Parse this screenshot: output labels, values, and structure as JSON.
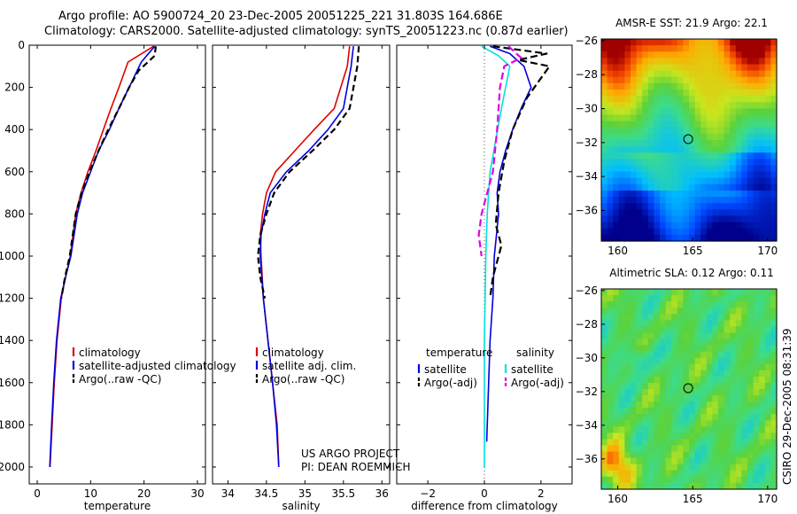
{
  "header": {
    "line1": "Argo profile: AO 5900724_20 23-Dec-2005 20051225_221 31.803S 164.686E",
    "line2": "Climatology: CARS2000. Satellite-adjusted climatology: synTS_20051223.nc (0.87d earlier)"
  },
  "side_label": "CSIRO 29-Dec-2005 08:31:39",
  "project_credit": [
    "US ARGO PROJECT",
    "PI: DEAN ROEMMICH"
  ],
  "colors": {
    "climatology": "#dd0000",
    "satellite": "#0000dd",
    "argo": "#000000",
    "sat_salinity": "#00e0e0",
    "argo_salinity": "#e000e0"
  },
  "chart_data": [
    {
      "type": "line",
      "id": "temperature",
      "xlabel": "temperature",
      "ylabel": "",
      "xlim": [
        -1.5,
        31.5
      ],
      "ylim": [
        0,
        2080
      ],
      "xticks": [
        0,
        10,
        20,
        30
      ],
      "yticks": [
        0,
        200,
        400,
        600,
        800,
        1000,
        1200,
        1400,
        1600,
        1800,
        2000
      ],
      "y_reversed": true,
      "legend": [
        "climatology",
        "satellite-adjusted climatology",
        "Argo(..raw -QC)"
      ],
      "legend_position": "lower-right",
      "series": [
        {
          "name": "climatology",
          "color": "#dd0000",
          "dash": "",
          "x": [
            21.8,
            17,
            15.3,
            13.8,
            12.4,
            11,
            9.5,
            8.2,
            7.2,
            6.2,
            5.3,
            4.5,
            3.7,
            3.2,
            2.8,
            2.4
          ],
          "y": [
            5,
            80,
            200,
            300,
            400,
            500,
            600,
            700,
            800,
            1000,
            1100,
            1200,
            1400,
            1600,
            1800,
            2000
          ]
        },
        {
          "name": "satellite-adjusted climatology",
          "color": "#0000dd",
          "dash": "",
          "x": [
            22,
            19.5,
            17.2,
            15.3,
            13.5,
            11.5,
            10,
            8.5,
            7.5,
            6.3,
            5.3,
            4.4,
            3.6,
            3.1,
            2.7,
            2.35
          ],
          "y": [
            5,
            80,
            200,
            300,
            400,
            500,
            600,
            700,
            800,
            1000,
            1100,
            1200,
            1400,
            1600,
            1800,
            2000
          ]
        },
        {
          "name": "Argo(..raw -QC)",
          "color": "#000000",
          "dash": "7,4",
          "x": [
            22.2,
            22.0,
            19,
            17.2,
            15.3,
            13.3,
            11.5,
            9.8,
            8.3,
            7.2,
            6.1,
            5.2,
            4.5
          ],
          "y": [
            5,
            50,
            120,
            200,
            300,
            400,
            500,
            600,
            700,
            800,
            1000,
            1100,
            1200
          ]
        }
      ]
    },
    {
      "type": "line",
      "id": "salinity",
      "xlabel": "salinity",
      "ylabel": "",
      "xlim": [
        33.8,
        36.1
      ],
      "ylim": [
        0,
        2080
      ],
      "xticks": [
        34,
        34.5,
        35,
        35.5,
        36
      ],
      "yticks": [
        0,
        200,
        400,
        600,
        800,
        1000,
        1200,
        1400,
        1600,
        1800,
        2000
      ],
      "y_reversed": true,
      "legend": [
        "climatology",
        "satellite adj. clim.",
        "Argo(..raw -QC)"
      ],
      "legend_position": "lower-right",
      "series": [
        {
          "name": "climatology",
          "color": "#dd0000",
          "dash": "",
          "x": [
            35.58,
            35.55,
            35.38,
            35.12,
            34.87,
            34.62,
            34.5,
            34.45,
            34.42,
            34.43,
            34.46,
            34.52,
            34.58,
            34.64,
            34.66
          ],
          "y": [
            5,
            100,
            300,
            400,
            500,
            600,
            700,
            800,
            900,
            1000,
            1200,
            1400,
            1600,
            1800,
            2000
          ]
        },
        {
          "name": "satellite adj. clim.",
          "color": "#0000dd",
          "dash": "",
          "x": [
            35.63,
            35.6,
            35.5,
            35.3,
            35.05,
            34.76,
            34.55,
            34.48,
            34.43,
            34.42,
            34.46,
            34.52,
            34.58,
            34.63,
            34.66
          ],
          "y": [
            5,
            100,
            300,
            400,
            500,
            600,
            700,
            800,
            900,
            1000,
            1200,
            1400,
            1600,
            1800,
            2000
          ]
        },
        {
          "name": "Argo(..raw -QC)",
          "color": "#000000",
          "dash": "7,4",
          "x": [
            35.7,
            35.68,
            35.58,
            35.38,
            35.1,
            34.8,
            34.6,
            34.5,
            34.42,
            34.39,
            34.42,
            34.48
          ],
          "y": [
            5,
            100,
            300,
            400,
            500,
            600,
            700,
            800,
            900,
            1000,
            1100,
            1200
          ]
        }
      ]
    },
    {
      "type": "line",
      "id": "difference",
      "xlabel": "difference from climatology",
      "ylabel": "",
      "xlim": [
        -3.1,
        3.1
      ],
      "ylim": [
        0,
        2080
      ],
      "xticks": [
        -2,
        0,
        2
      ],
      "yticks": [
        0,
        200,
        400,
        600,
        800,
        1000,
        1200,
        1400,
        1600,
        1800,
        2000
      ],
      "y_reversed": true,
      "legend_groups": [
        {
          "title": "temperature",
          "items": [
            "satellite",
            "Argo(-adj)"
          ]
        },
        {
          "title": "salinity",
          "items": [
            "satellite",
            "Argo(-adj)"
          ]
        }
      ],
      "legend_position": "lower",
      "series": [
        {
          "name": "temperature satellite",
          "color": "#0000dd",
          "dash": "",
          "x": [
            0.2,
            0.9,
            1.4,
            1.65,
            1.3,
            1.0,
            0.75,
            0.55,
            0.45,
            0.5,
            0.35,
            0.3,
            0.2,
            0.15,
            0.08
          ],
          "y": [
            5,
            40,
            100,
            200,
            300,
            400,
            500,
            600,
            700,
            800,
            1000,
            1200,
            1400,
            1600,
            1880
          ]
        },
        {
          "name": "temperature Argo(-adj)",
          "color": "#000000",
          "dash": "8,4",
          "x": [
            0.3,
            2.2,
            1.2,
            2.3,
            1.5,
            1.0,
            0.7,
            0.5,
            0.4,
            0.6,
            0.3,
            0.2
          ],
          "y": [
            5,
            40,
            70,
            100,
            250,
            400,
            550,
            700,
            850,
            950,
            1100,
            1200
          ]
        },
        {
          "name": "salinity satellite",
          "color": "#00e0e0",
          "dash": "",
          "x": [
            -0.1,
            0.5,
            0.9,
            0.75,
            0.6,
            0.4,
            0.2,
            0.1,
            0.05,
            0.0,
            0.0
          ],
          "y": [
            5,
            50,
            100,
            200,
            300,
            450,
            600,
            800,
            1000,
            1400,
            2000
          ]
        },
        {
          "name": "salinity Argo(-adj)",
          "color": "#e000e0",
          "dash": "8,4",
          "x": [
            0.85,
            1.3,
            0.7,
            0.55,
            0.45,
            0.3,
            0.1,
            -0.1,
            -0.2,
            -0.1
          ],
          "y": [
            5,
            60,
            100,
            200,
            400,
            600,
            700,
            800,
            900,
            1000
          ]
        }
      ]
    },
    {
      "type": "heatmap",
      "id": "sst",
      "title": "AMSR-E SST: 21.9 Argo: 22.1",
      "xlim": [
        158.9,
        170.6
      ],
      "ylim": [
        -37.8,
        -25.9
      ],
      "xticks": [
        160,
        165,
        170
      ],
      "yticks": [
        -26,
        -28,
        -30,
        -32,
        -34,
        -36
      ],
      "marker": {
        "lon": 164.7,
        "lat": -31.8
      }
    },
    {
      "type": "heatmap",
      "id": "sla",
      "title": "Altimetric SLA: 0.12 Argo: 0.11",
      "xlim": [
        158.9,
        170.6
      ],
      "ylim": [
        -37.8,
        -25.9
      ],
      "xticks": [
        160,
        165,
        170
      ],
      "yticks": [
        -26,
        -28,
        -30,
        -32,
        -34,
        -36
      ],
      "marker": {
        "lon": 164.7,
        "lat": -31.8
      }
    }
  ]
}
